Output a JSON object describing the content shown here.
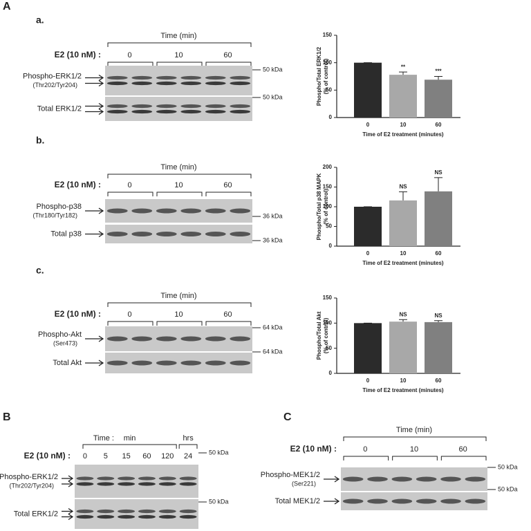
{
  "panel_label": "A",
  "blots": [
    {
      "label": "a.",
      "header": "Time (min)",
      "treatment": "E2 (10 nM) :",
      "times": [
        "0",
        "10",
        "60"
      ],
      "rows": [
        {
          "name": "Phospho-ERK1/2",
          "site": "(Thr202/Tyr204)",
          "marker": "50 kDa"
        },
        {
          "name": "Total ERK1/2",
          "marker": "50 kDa"
        }
      ]
    },
    {
      "label": "b.",
      "header": "Time (min)",
      "treatment": "E2 (10 nM) :",
      "times": [
        "0",
        "10",
        "60"
      ],
      "rows": [
        {
          "name": "Phospho-p38",
          "site": "(Thr180/Tyr182)",
          "marker": "36 kDa"
        },
        {
          "name": "Total p38",
          "marker": "36 kDa"
        }
      ]
    },
    {
      "label": "c.",
      "header": "Time (min)",
      "treatment": "E2 (10 nM) :",
      "times": [
        "0",
        "10",
        "60"
      ],
      "rows": [
        {
          "name": "Phospho-Akt",
          "site": "(Ser473)",
          "marker": "64 kDa"
        },
        {
          "name": "Total Akt",
          "marker": "64 kDa"
        }
      ]
    },
    {
      "label": "B",
      "header": "Time :",
      "units": [
        "min",
        "hrs"
      ],
      "treatment": "E2 (10 nM) :",
      "times": [
        "0",
        "5",
        "15",
        "60",
        "120",
        "24"
      ],
      "rows": [
        {
          "name": "Phospho-ERK1/2",
          "site": "(Thr202/Tyr204)",
          "marker": "50 kDa"
        },
        {
          "name": "Total ERK1/2",
          "marker": "50 kDa"
        }
      ]
    },
    {
      "label": "C",
      "header": "Time (min)",
      "treatment": "E2 (10 nM) :",
      "times": [
        "0",
        "10",
        "60"
      ],
      "rows": [
        {
          "name": "Phospho-MEK1/2",
          "site": "(Ser221)",
          "marker": "50 kDa"
        },
        {
          "name": "Total MEK1/2",
          "marker": "50 kDa"
        }
      ]
    }
  ],
  "chart_data": [
    {
      "type": "bar",
      "ylabel": "Phospho/Total ERK1/2",
      "ylabel_note": "(% of control)",
      "xlabel": "Time of E2 treatment (minutes)",
      "categories": [
        "0",
        "10",
        "60"
      ],
      "values": [
        100,
        78,
        69
      ],
      "errors": [
        0,
        5,
        6
      ],
      "annotations": [
        null,
        "**",
        "***"
      ],
      "colors": [
        "#2b2b2b",
        "#a8a8a8",
        "#808080"
      ],
      "ylim": [
        0,
        150
      ],
      "yticks": [
        0,
        50,
        100,
        150
      ]
    },
    {
      "type": "bar",
      "ylabel": "Phospho/Total p38 MAPK",
      "ylabel_note": "(% of control)",
      "xlabel": "Time of E2 treatment (minutes)",
      "categories": [
        "0",
        "10",
        "60"
      ],
      "values": [
        100,
        116,
        139
      ],
      "errors": [
        0,
        22,
        35
      ],
      "annotations": [
        null,
        "NS",
        "NS"
      ],
      "colors": [
        "#2b2b2b",
        "#a8a8a8",
        "#808080"
      ],
      "ylim": [
        0,
        200
      ],
      "yticks": [
        0,
        50,
        100,
        150,
        200
      ]
    },
    {
      "type": "bar",
      "ylabel": "Phospho/Total Akt",
      "ylabel_note": "(% of control)",
      "xlabel": "Time of E2 treatment (minutes)",
      "categories": [
        "0",
        "10",
        "60"
      ],
      "values": [
        100,
        103,
        102
      ],
      "errors": [
        0,
        4,
        3
      ],
      "annotations": [
        null,
        "NS",
        "NS"
      ],
      "colors": [
        "#2b2b2b",
        "#a8a8a8",
        "#808080"
      ],
      "ylim": [
        0,
        150
      ],
      "yticks": [
        0,
        50,
        100,
        150
      ]
    }
  ]
}
